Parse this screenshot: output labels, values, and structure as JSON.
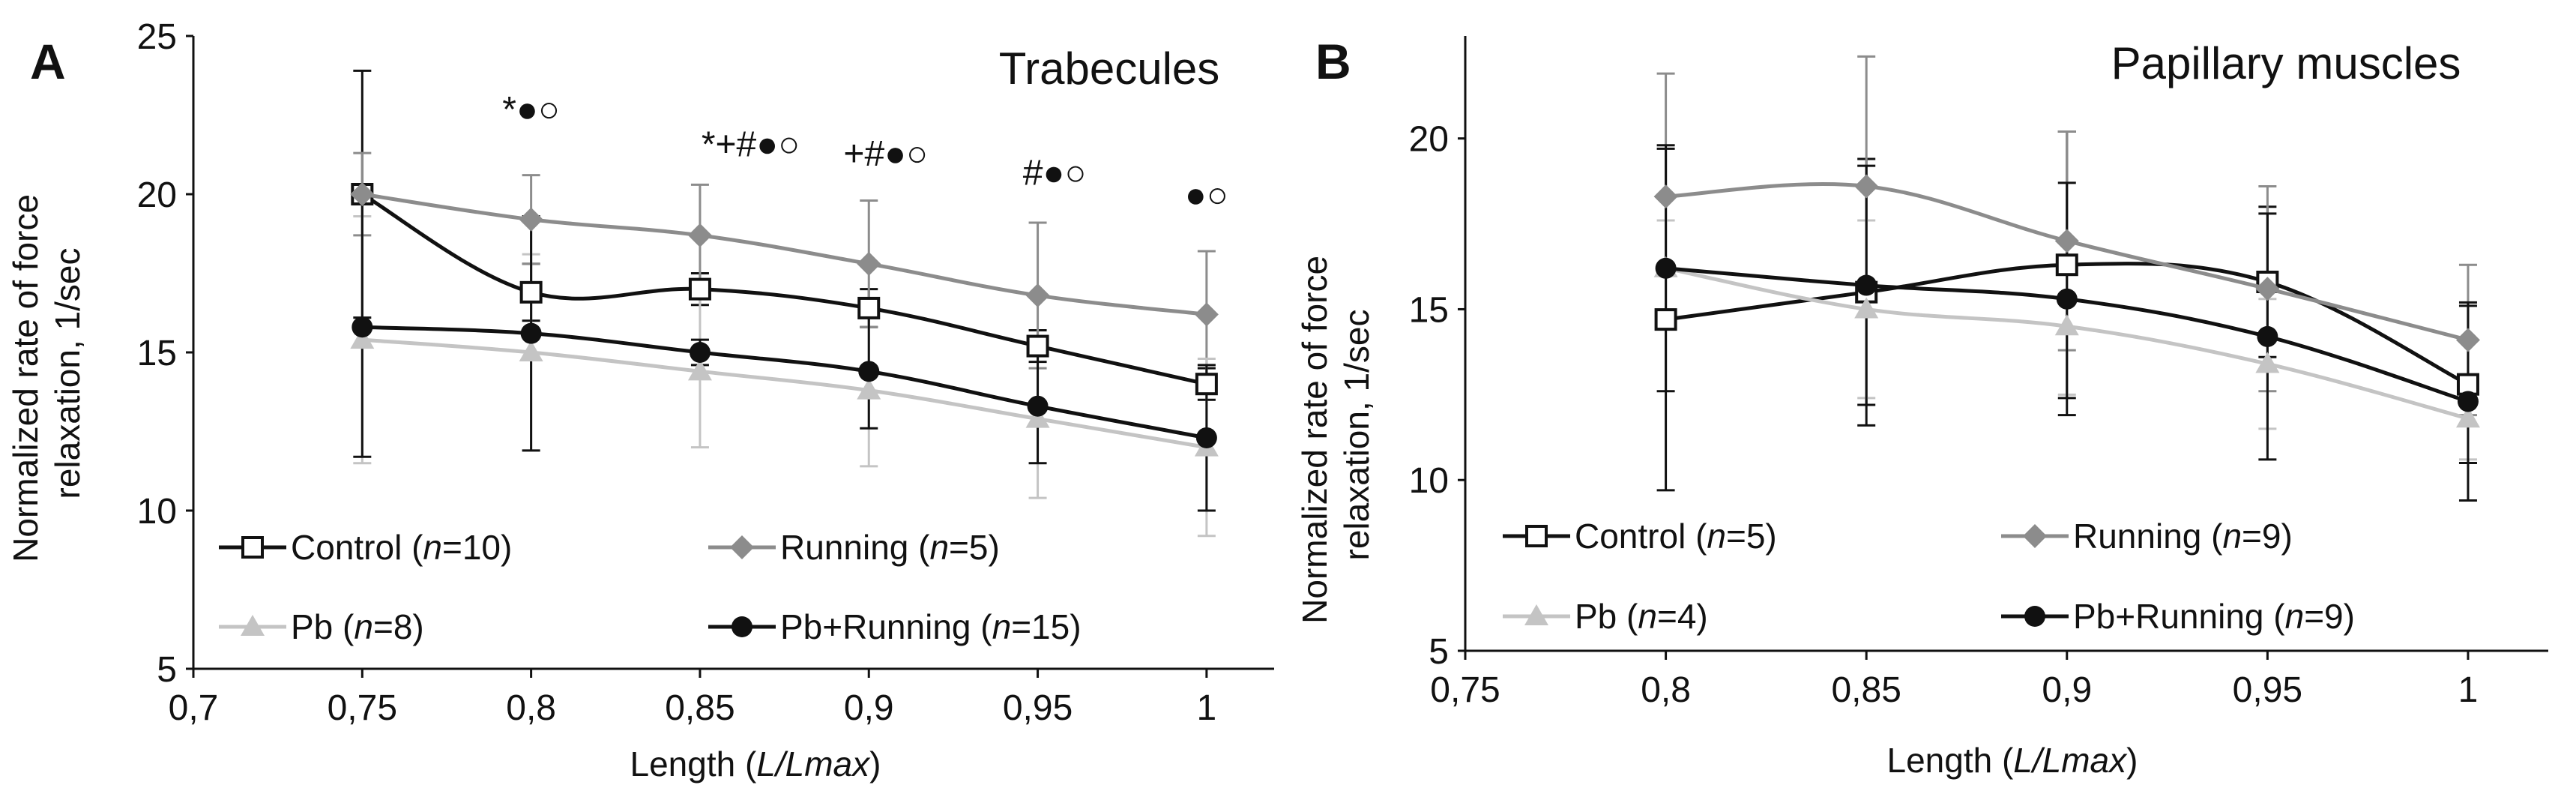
{
  "figure": {
    "colors": {
      "axis": "#111111",
      "control": "#111111",
      "running": "#8c8c8c",
      "pb": "#c4c4c4",
      "pb_running": "#111111",
      "error_bar": "#8c8c8c"
    }
  },
  "chart_data": [
    {
      "type": "line",
      "panel": "A",
      "title": "Trabecules",
      "xlabel": {
        "prefix": "Length (",
        "italic": "L/Lmax",
        "suffix": ")"
      },
      "ylabel": [
        "Normalized rate of force",
        "relaxation, 1/sec"
      ],
      "xlim": [
        0.7,
        1.02
      ],
      "ylim": [
        5,
        25
      ],
      "xticks": [
        0.7,
        0.75,
        0.8,
        0.85,
        0.9,
        0.95,
        1
      ],
      "xtick_labels": [
        "0,7",
        "0,75",
        "0,8",
        "0,85",
        "0,9",
        "0,95",
        "1"
      ],
      "yticks": [
        5,
        10,
        15,
        20,
        25
      ],
      "ytick_labels": [
        "5",
        "10",
        "15",
        "20",
        "25"
      ],
      "x": [
        0.75,
        0.8,
        0.85,
        0.9,
        0.95,
        1
      ],
      "series": [
        {
          "key": "control",
          "name": "Control",
          "n": "10",
          "marker": "open-square",
          "values": [
            20.0,
            16.9,
            17.0,
            16.4,
            15.2,
            14.0
          ],
          "err": [
            3.9,
            0.9,
            0.5,
            0.6,
            0.5,
            0.5
          ]
        },
        {
          "key": "running",
          "name": "Running",
          "n": "5",
          "marker": "diamond",
          "values": [
            20.0,
            19.2,
            18.7,
            17.8,
            16.8,
            16.2
          ],
          "err": [
            1.3,
            1.4,
            1.6,
            2.0,
            2.3,
            2.0
          ]
        },
        {
          "key": "pb",
          "name": "Pb",
          "n": "8",
          "marker": "triangle",
          "values": [
            15.4,
            15.0,
            14.4,
            13.8,
            12.9,
            12.0
          ],
          "err": [
            3.9,
            3.1,
            2.4,
            2.4,
            2.5,
            2.8
          ]
        },
        {
          "key": "pb_running",
          "name": "Pb+Running",
          "n": "15",
          "marker": "filled-circle",
          "values": [
            15.8,
            15.6,
            15.0,
            14.4,
            13.3,
            12.3
          ],
          "err": [
            4.1,
            3.7,
            0.4,
            1.8,
            1.8,
            2.3
          ]
        }
      ],
      "annotations": [
        {
          "x": 0.8,
          "y": 22.3,
          "symbols": "*●○"
        },
        {
          "x": 0.865,
          "y": 21.2,
          "symbols": "*+#●○"
        },
        {
          "x": 0.905,
          "y": 20.9,
          "symbols": "+#●○"
        },
        {
          "x": 0.955,
          "y": 20.3,
          "symbols": "#●○"
        },
        {
          "x": 1.0,
          "y": 19.6,
          "symbols": "●○"
        }
      ],
      "legend": [
        {
          "key": "control",
          "label": "Control (",
          "n_label": "n",
          "n_value": "=10)"
        },
        {
          "key": "running",
          "label": "Running (",
          "n_label": "n",
          "n_value": "=5)"
        },
        {
          "key": "pb",
          "label": "Pb (",
          "n_label": "n",
          "n_value": "=8)"
        },
        {
          "key": "pb_running",
          "label": "Pb+Running (",
          "n_label": "n",
          "n_value": "=15)"
        }
      ]
    },
    {
      "type": "line",
      "panel": "B",
      "title": "Papillary muscles",
      "xlabel": {
        "prefix": "Length (",
        "italic": "L/Lmax",
        "suffix": ")"
      },
      "ylabel": [
        "Normalized rate of force",
        "relaxation, 1/sec"
      ],
      "xlim": [
        0.75,
        1.02
      ],
      "ylim": [
        5,
        23
      ],
      "xticks": [
        0.75,
        0.8,
        0.85,
        0.9,
        0.95,
        1
      ],
      "xtick_labels": [
        "0,75",
        "0,8",
        "0,85",
        "0,9",
        "0,95",
        "1"
      ],
      "yticks": [
        5,
        10,
        15,
        20
      ],
      "ytick_labels": [
        "5",
        "10",
        "15",
        "20"
      ],
      "x": [
        0.8,
        0.85,
        0.9,
        0.95,
        1
      ],
      "series": [
        {
          "key": "control",
          "name": "Control",
          "n": "5",
          "marker": "open-square",
          "values": [
            14.7,
            15.5,
            16.3,
            15.8,
            12.8
          ],
          "err": [
            5.0,
            3.9,
            3.9,
            2.2,
            2.3
          ]
        },
        {
          "key": "running",
          "name": "Running",
          "n": "9",
          "marker": "diamond",
          "values": [
            18.3,
            18.6,
            17.0,
            15.6,
            14.1
          ],
          "err": [
            3.6,
            3.8,
            3.2,
            3.0,
            2.2
          ]
        },
        {
          "key": "pb",
          "name": "Pb",
          "n": "4",
          "marker": "triangle",
          "values": [
            16.2,
            15.0,
            14.5,
            13.4,
            11.8
          ],
          "err": [
            1.4,
            2.6,
            2.0,
            1.9,
            1.2
          ]
        },
        {
          "key": "pb_running",
          "name": "Pb+Running",
          "n": "9",
          "marker": "filled-circle",
          "values": [
            16.2,
            15.7,
            15.3,
            14.2,
            12.3
          ],
          "err": [
            3.6,
            3.5,
            3.4,
            3.6,
            2.9
          ]
        }
      ],
      "annotations": [],
      "legend": [
        {
          "key": "control",
          "label": "Control (",
          "n_label": "n",
          "n_value": "=5)"
        },
        {
          "key": "running",
          "label": "Running (",
          "n_label": "n",
          "n_value": "=9)"
        },
        {
          "key": "pb",
          "label": "Pb (",
          "n_label": "n",
          "n_value": "=4)"
        },
        {
          "key": "pb_running",
          "label": "Pb+Running (",
          "n_label": "n",
          "n_value": "=9)"
        }
      ]
    }
  ]
}
